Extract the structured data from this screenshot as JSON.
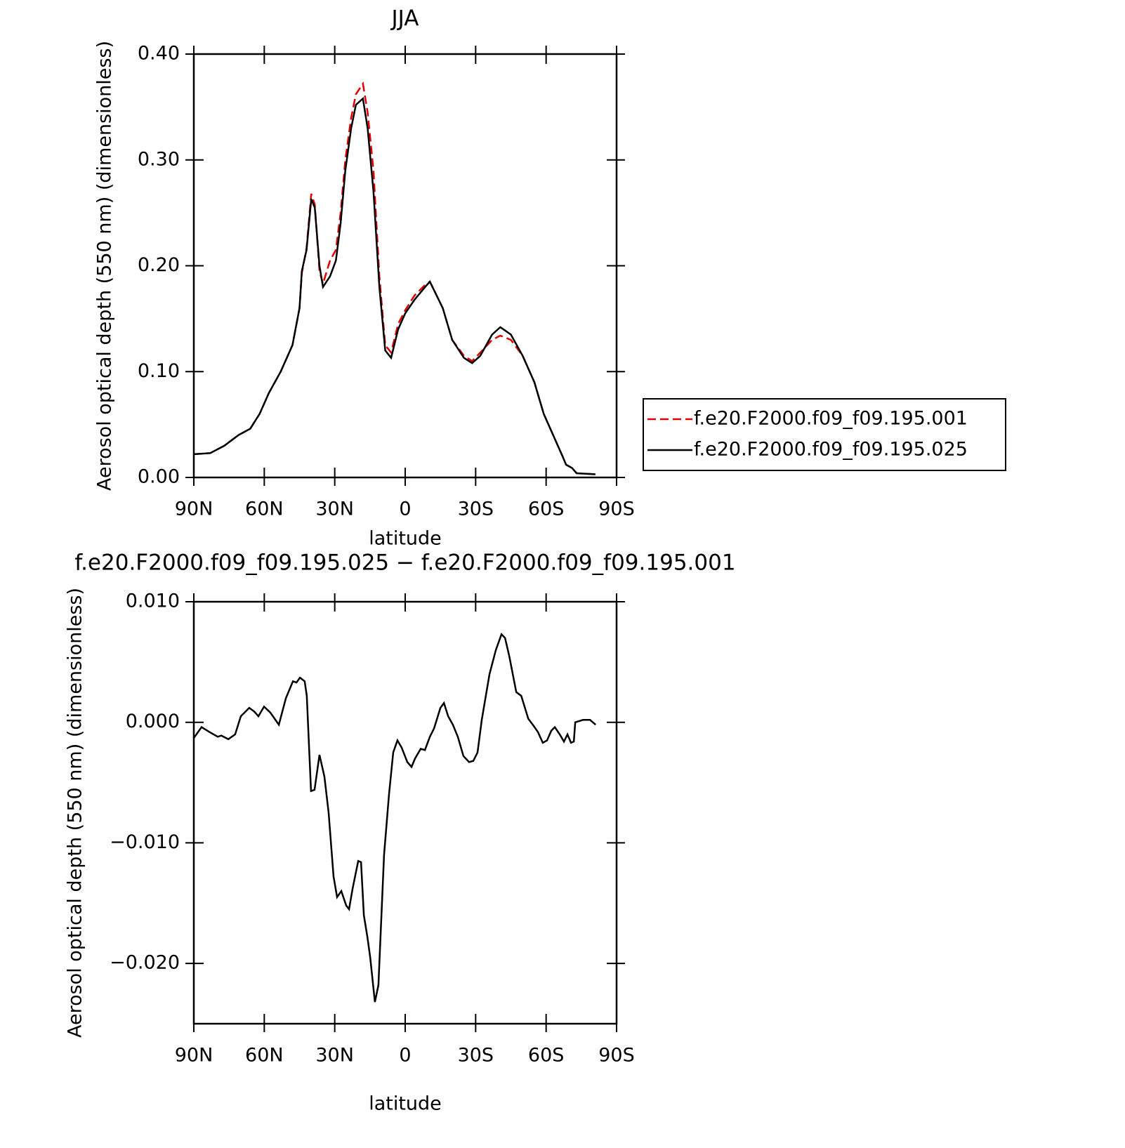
{
  "chart_data": [
    {
      "type": "line",
      "title": "JJA",
      "xlabel": "latitude",
      "ylabel": "Aerosol optical depth (550 nm) (dimensionless)",
      "xlim": [
        90,
        -90
      ],
      "xticks": [
        {
          "value": 90,
          "label": "90N"
        },
        {
          "value": 60,
          "label": "60N"
        },
        {
          "value": 30,
          "label": "30N"
        },
        0,
        {
          "value": -30,
          "label": "30S"
        },
        {
          "value": -60,
          "label": "60S"
        },
        {
          "value": -90,
          "label": "90S"
        }
      ],
      "ylim": [
        0,
        0.4
      ],
      "yticks": [
        {
          "value": 0,
          "label": "0.00"
        },
        {
          "value": 0.1,
          "label": "0.10"
        },
        {
          "value": 0.2,
          "label": "0.20"
        },
        {
          "value": 0.3,
          "label": "0.30"
        },
        {
          "value": 0.4,
          "label": "0.40"
        }
      ],
      "legend": "right",
      "x": [
        90,
        83,
        77,
        71,
        66,
        62,
        58,
        53,
        48,
        45,
        44,
        42,
        40,
        38.5,
        36.5,
        35,
        32,
        29.5,
        27.5,
        25.5,
        23,
        21,
        18,
        16,
        13.5,
        11,
        8.5,
        6,
        3,
        0,
        -4,
        -8.5,
        -10.5,
        -16,
        -20,
        -25,
        -28.5,
        -32,
        -37,
        -40.5,
        -45,
        -50,
        -55,
        -59,
        -64,
        -67,
        -68.5,
        -71,
        -73,
        -81
      ],
      "series": [
        {
          "name": "f.e20.F2000.f09_f09.195.001",
          "color": "#e00000",
          "dash": "dashed",
          "values": [
            0.022,
            0.023,
            0.03,
            0.04,
            0.046,
            0.06,
            0.08,
            0.1,
            0.125,
            0.16,
            0.193,
            0.217,
            0.268,
            0.258,
            0.195,
            0.183,
            0.205,
            0.215,
            0.25,
            0.3,
            0.34,
            0.362,
            0.372,
            0.345,
            0.29,
            0.19,
            0.125,
            0.118,
            0.145,
            0.158,
            0.172,
            0.182,
            0.185,
            0.16,
            0.13,
            0.115,
            0.11,
            0.118,
            0.13,
            0.134,
            0.13,
            0.115,
            0.09,
            0.06,
            0.035,
            0.02,
            0.012,
            0.009,
            0.004,
            0.003
          ]
        },
        {
          "name": "f.e20.F2000.f09_f09.195.025",
          "color": "#000000",
          "dash": "solid",
          "values": [
            0.022,
            0.023,
            0.03,
            0.04,
            0.046,
            0.06,
            0.08,
            0.1,
            0.125,
            0.16,
            0.195,
            0.215,
            0.263,
            0.255,
            0.2,
            0.18,
            0.19,
            0.205,
            0.24,
            0.29,
            0.33,
            0.352,
            0.358,
            0.33,
            0.27,
            0.18,
            0.12,
            0.113,
            0.14,
            0.155,
            0.168,
            0.18,
            0.185,
            0.16,
            0.13,
            0.113,
            0.108,
            0.115,
            0.135,
            0.142,
            0.135,
            0.115,
            0.09,
            0.06,
            0.035,
            0.02,
            0.012,
            0.009,
            0.004,
            0.003
          ]
        }
      ]
    },
    {
      "type": "line",
      "title": "f.e20.F2000.f09_f09.195.025 − f.e20.F2000.f09_f09.195.001",
      "xlabel": "latitude",
      "ylabel": "Aerosol optical depth (550 nm) (dimensionless)",
      "xlim": [
        90,
        -90
      ],
      "xticks": [
        {
          "value": 90,
          "label": "90N"
        },
        {
          "value": 60,
          "label": "60N"
        },
        {
          "value": 30,
          "label": "30N"
        },
        0,
        {
          "value": -30,
          "label": "30S"
        },
        {
          "value": -60,
          "label": "60S"
        },
        {
          "value": -90,
          "label": "90S"
        }
      ],
      "ylim": [
        -0.025,
        0.01
      ],
      "yticks": [
        {
          "value": -0.02,
          "label": "−0.020"
        },
        {
          "value": -0.01,
          "label": "−0.010"
        },
        {
          "value": 0,
          "label": "0.000"
        },
        {
          "value": 0.01,
          "label": "0.010"
        }
      ],
      "x": [
        90,
        86.7,
        83.4,
        79.8,
        78.3,
        75.3,
        72.4,
        70,
        66.4,
        64.3,
        62.5,
        60.1,
        57.4,
        53.8,
        50.8,
        47.8,
        46.3,
        44.8,
        42.8,
        41.9,
        40.1,
        38.6,
        36.5,
        34.4,
        32.6,
        30.5,
        29,
        27.2,
        25.1,
        23.9,
        22.4,
        20,
        18.8,
        17.6,
        16.1,
        14.9,
        12.9,
        11.4,
        9,
        6.9,
        5.1,
        3.3,
        1.5,
        -0.9,
        -2.7,
        -4.2,
        -6.6,
        -8.4,
        -10.5,
        -12.3,
        -15,
        -16.5,
        -18.3,
        -20.3,
        -22.4,
        -24.8,
        -27.2,
        -29,
        -30.8,
        -32.6,
        -35.9,
        -38.6,
        -41,
        -42.5,
        -44.3,
        -47.3,
        -49.4,
        -52.4,
        -54.7,
        -56.5,
        -58.6,
        -60.4,
        -62.2,
        -63.7,
        -65.8,
        -67.6,
        -69.1,
        -70.6,
        -71.8,
        -72.4,
        -75.7,
        -78.7,
        -81.1
      ],
      "series": [
        {
          "color": "#000000",
          "dash": "solid",
          "values": [
            -0.0013,
            -0.0004,
            -0.0008,
            -0.0012,
            -0.0011,
            -0.0014,
            -0.001,
            0.0005,
            0.0012,
            0.0009,
            0.0005,
            0.0013,
            0.0008,
            -0.0002,
            0.002,
            0.0034,
            0.0033,
            0.0037,
            0.0034,
            0.0022,
            -0.0057,
            -0.0056,
            -0.0027,
            -0.0045,
            -0.0075,
            -0.0128,
            -0.0145,
            -0.014,
            -0.0152,
            -0.0155,
            -0.0138,
            -0.0115,
            -0.0116,
            -0.016,
            -0.0178,
            -0.0195,
            -0.0232,
            -0.0218,
            -0.011,
            -0.006,
            -0.0025,
            -0.0015,
            -0.0021,
            -0.0033,
            -0.0037,
            -0.003,
            -0.0022,
            -0.0023,
            -0.0012,
            -0.0005,
            0.0012,
            0.0016,
            0.0005,
            -0.0002,
            -0.0012,
            -0.0028,
            -0.0033,
            -0.0032,
            -0.0025,
            0.0002,
            0.004,
            0.006,
            0.0073,
            0.007,
            0.0055,
            0.0025,
            0.0022,
            0.0003,
            -0.0003,
            -0.0008,
            -0.0017,
            -0.0015,
            -0.0007,
            -0.0004,
            -0.001,
            -0.0016,
            -0.001,
            -0.0017,
            -0.0016,
            0,
            0.0002,
            0.0002,
            -0.0002
          ]
        }
      ]
    }
  ]
}
